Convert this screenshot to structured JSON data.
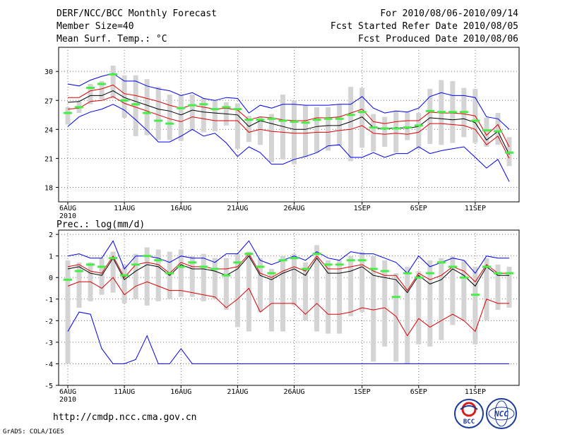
{
  "header": {
    "title": "DERF/NCC/BCC Monthly Forecast",
    "member_size": "Member Size=40",
    "variable": "Mean Surf. Temp.: °C",
    "forecast_period": "For 2010/08/06-2010/09/14",
    "started_refer": "Fcst Started Refer Date 2010/08/05",
    "produced": "Fcst Produced Date 2010/08/06"
  },
  "x_axis": {
    "n_days": 40,
    "tick_labels": [
      {
        "day": 1,
        "label": "6AUG"
      },
      {
        "day": 6,
        "label": "11AUG"
      },
      {
        "day": 11,
        "label": "16AUG"
      },
      {
        "day": 16,
        "label": "21AUG"
      },
      {
        "day": 21,
        "label": "26AUG"
      },
      {
        "day": 27,
        "label": "1SEP"
      },
      {
        "day": 32,
        "label": "6SEP"
      },
      {
        "day": 37,
        "label": "11SEP"
      }
    ],
    "year_label": "2010"
  },
  "chart_data": [
    {
      "type": "line",
      "name": "temperature",
      "title": "Mean Surf. Temp.: °C",
      "ylim": [
        16.5,
        32.5
      ],
      "yticks": [
        18,
        21,
        24,
        27,
        30
      ],
      "grid": true,
      "colors": {
        "max": "#0000ee",
        "min": "#0000ee",
        "upper": "#dd0000",
        "lower": "#dd0000",
        "mean": "#000000",
        "obs": "#44ee44",
        "spread": "#d4d4d4"
      },
      "series": [
        {
          "name": "max",
          "values": [
            28.7,
            28.5,
            29.1,
            29.5,
            29.8,
            29.0,
            29.0,
            28.5,
            28.2,
            28.0,
            27.5,
            27.8,
            27.2,
            27.0,
            27.3,
            27.2,
            25.7,
            26.5,
            26.2,
            26.6,
            26.6,
            26.5,
            26.5,
            26.5,
            26.6,
            26.6,
            27.4,
            26.2,
            25.7,
            25.9,
            25.8,
            26.2,
            27.4,
            27.8,
            27.5,
            27.5,
            27.3,
            25.3,
            25.1,
            24.0
          ]
        },
        {
          "name": "upper",
          "values": [
            27.3,
            27.3,
            28.0,
            28.2,
            28.6,
            27.7,
            27.5,
            27.2,
            26.9,
            26.5,
            26.2,
            26.5,
            26.3,
            26.1,
            26.2,
            26.0,
            25.0,
            25.3,
            25.2,
            25.0,
            24.9,
            24.9,
            25.2,
            25.2,
            25.3,
            25.7,
            26.1,
            24.8,
            24.6,
            24.8,
            24.9,
            24.9,
            25.8,
            25.7,
            25.7,
            25.6,
            25.4,
            23.4,
            24.5,
            22.2
          ]
        },
        {
          "name": "mean",
          "values": [
            26.8,
            26.9,
            27.5,
            27.5,
            28.0,
            27.3,
            26.9,
            26.5,
            26.1,
            25.9,
            25.5,
            26.0,
            25.8,
            25.7,
            25.6,
            25.5,
            24.3,
            24.9,
            24.6,
            24.3,
            24.0,
            24.0,
            24.3,
            24.4,
            24.4,
            24.8,
            25.3,
            24.2,
            24.0,
            24.2,
            24.1,
            24.3,
            25.2,
            25.1,
            25.0,
            25.1,
            24.7,
            22.9,
            23.8,
            21.4
          ]
        },
        {
          "name": "lower",
          "values": [
            26.1,
            26.2,
            26.9,
            27.0,
            27.4,
            26.7,
            26.3,
            25.9,
            25.5,
            25.1,
            24.8,
            25.3,
            25.1,
            24.9,
            24.9,
            24.9,
            23.7,
            24.0,
            23.8,
            23.7,
            23.6,
            23.6,
            23.7,
            23.7,
            23.9,
            24.0,
            24.4,
            23.6,
            23.5,
            23.6,
            23.5,
            23.7,
            24.6,
            24.6,
            24.5,
            24.4,
            24.0,
            22.4,
            23.3,
            21.0
          ]
        },
        {
          "name": "min",
          "values": [
            24.3,
            25.3,
            25.8,
            26.1,
            26.6,
            26.0,
            25.0,
            23.9,
            22.7,
            22.7,
            23.3,
            24.0,
            23.3,
            23.6,
            22.6,
            21.2,
            22.2,
            21.6,
            20.4,
            20.4,
            20.9,
            21.2,
            21.6,
            22.3,
            22.4,
            21.1,
            21.1,
            21.6,
            21.1,
            21.5,
            21.5,
            22.2,
            21.5,
            21.8,
            22.0,
            22.2,
            21.1,
            20.0,
            20.9,
            18.6
          ]
        },
        {
          "name": "obs",
          "values": [
            25.7,
            26.3,
            28.3,
            28.7,
            29.7,
            27.0,
            26.6,
            25.7,
            24.9,
            24.6,
            26.2,
            26.5,
            26.6,
            26.1,
            26.3,
            26.1,
            25.0,
            25.0,
            25.1,
            24.9,
            24.8,
            24.7,
            25.0,
            25.1,
            25.1,
            25.5,
            25.8,
            24.2,
            24.1,
            24.1,
            24.2,
            24.4,
            25.9,
            25.8,
            25.8,
            25.8,
            24.9,
            23.9,
            23.8,
            21.6
          ]
        },
        {
          "name": "spread_top",
          "values": [
            26.3,
            26.9,
            28.7,
            29.0,
            30.6,
            29.6,
            29.6,
            29.2,
            28.4,
            27.6,
            27.6,
            27.6,
            27.2,
            27.0,
            26.8,
            26.7,
            25.4,
            25.3,
            25.6,
            27.6,
            27.0,
            26.5,
            26.3,
            26.3,
            26.6,
            28.4,
            28.3,
            25.6,
            25.3,
            25.9,
            25.8,
            25.7,
            28.2,
            29.1,
            29.0,
            28.3,
            28.2,
            25.2,
            25.7,
            23.2
          ]
        },
        {
          "name": "spread_bottom",
          "values": [
            24.5,
            25.7,
            26.6,
            27.1,
            27.2,
            25.2,
            23.3,
            23.4,
            22.9,
            22.9,
            22.8,
            23.9,
            23.7,
            23.8,
            24.4,
            22.0,
            22.7,
            22.4,
            20.6,
            20.9,
            20.4,
            21.1,
            21.6,
            21.8,
            22.3,
            20.7,
            22.1,
            21.7,
            22.2,
            21.6,
            22.9,
            22.0,
            22.5,
            22.4,
            22.6,
            23.2,
            22.6,
            22.2,
            22.4,
            20.2
          ]
        }
      ]
    },
    {
      "type": "line",
      "name": "precipitation",
      "title": "Prec.: log(mm/d)",
      "ylim": [
        -5,
        2.2
      ],
      "yticks": [
        -5,
        -4,
        -3,
        -2,
        -1,
        0,
        1,
        2
      ],
      "grid": true,
      "colors": {
        "max": "#0000ee",
        "min": "#0000ee",
        "upper": "#dd0000",
        "lower": "#dd0000",
        "mean": "#000000",
        "obs": "#44ee44",
        "spread": "#d4d4d4"
      },
      "series": [
        {
          "name": "max",
          "values": [
            1.0,
            1.1,
            0.9,
            0.9,
            1.7,
            0.4,
            1.0,
            1.0,
            0.9,
            0.7,
            1.0,
            0.9,
            0.9,
            0.7,
            1.1,
            1.1,
            1.7,
            0.8,
            0.6,
            0.8,
            1.0,
            0.8,
            1.2,
            0.9,
            0.8,
            1.2,
            1.1,
            1.1,
            0.9,
            0.7,
            0.2,
            1.0,
            0.5,
            0.7,
            0.9,
            0.8,
            0.2,
            1.0,
            0.9,
            0.9
          ]
        },
        {
          "name": "upper",
          "values": [
            0.5,
            0.6,
            0.3,
            0.2,
            1.0,
            0.0,
            0.6,
            0.7,
            0.6,
            0.2,
            0.7,
            0.5,
            0.5,
            0.4,
            0.4,
            0.5,
            1.1,
            0.2,
            0.0,
            0.3,
            0.5,
            0.3,
            1.0,
            0.4,
            0.4,
            0.5,
            0.6,
            0.3,
            0.1,
            0.1,
            -0.6,
            0.2,
            -0.1,
            0.1,
            0.5,
            0.3,
            -0.2,
            0.6,
            0.2,
            0.2
          ]
        },
        {
          "name": "mean",
          "values": [
            0.4,
            0.5,
            0.2,
            0.1,
            0.9,
            -0.1,
            0.3,
            0.6,
            0.5,
            0.1,
            0.6,
            0.4,
            0.4,
            0.3,
            0.1,
            0.4,
            1.0,
            0.1,
            -0.1,
            0.2,
            0.4,
            0.1,
            0.9,
            0.2,
            0.2,
            0.3,
            0.5,
            0.1,
            0.0,
            -0.1,
            -0.7,
            0.1,
            -0.3,
            -0.1,
            0.4,
            0.1,
            -0.4,
            0.5,
            0.1,
            0.1
          ]
        },
        {
          "name": "lower",
          "values": [
            -0.4,
            -0.2,
            -0.2,
            -0.5,
            0.0,
            -0.8,
            -0.4,
            -0.2,
            -0.4,
            -0.6,
            -0.6,
            -0.7,
            -0.8,
            -0.9,
            -1.4,
            -1.0,
            -0.5,
            -1.6,
            -1.2,
            -1.2,
            -1.2,
            -1.7,
            -1.2,
            -1.7,
            -1.7,
            -1.6,
            -1.4,
            -1.5,
            -1.4,
            -1.8,
            -2.7,
            -1.9,
            -2.3,
            -2.0,
            -1.7,
            -2.0,
            -2.5,
            -1.0,
            -1.2,
            -1.2
          ]
        },
        {
          "name": "min",
          "values": [
            -2.5,
            -1.6,
            -1.7,
            -3.3,
            -4.0,
            -4.0,
            -3.8,
            -2.7,
            -4.0,
            -4.0,
            -3.3,
            -4.0,
            -4.0,
            -4.0,
            -4.0,
            -4.0,
            -4.0,
            -4.0,
            -4.0,
            -4.0,
            -4.0,
            -4.0,
            -4.0,
            -4.0,
            -4.0,
            -4.0,
            -4.0,
            -4.0,
            -4.0,
            -4.0,
            -4.0,
            -4.0,
            -4.0,
            -4.0,
            -4.0,
            -4.0,
            -4.0,
            -4.0,
            -4.0,
            -4.0
          ]
        },
        {
          "name": "obs",
          "values": [
            -0.1,
            0.3,
            0.6,
            0.5,
            0.9,
            0.1,
            0.6,
            1.0,
            0.8,
            0.2,
            0.5,
            0.7,
            0.5,
            0.4,
            0.1,
            0.7,
            1.1,
            0.5,
            0.2,
            0.8,
            0.9,
            0.4,
            1.1,
            0.6,
            0.6,
            0.8,
            0.8,
            0.4,
            0.3,
            -0.9,
            0.2,
            0.0,
            0.2,
            0.7,
            0.5,
            0.0,
            -0.8,
            0.5,
            0.2,
            0.2
          ]
        },
        {
          "name": "spread_top",
          "values": [
            0.8,
            0.7,
            0.7,
            0.9,
            1.2,
            0.6,
            1.1,
            1.4,
            1.3,
            1.2,
            1.3,
            1.0,
            1.1,
            0.9,
            0.9,
            1.1,
            1.2,
            0.9,
            0.4,
            1.0,
            1.1,
            0.7,
            1.5,
            0.8,
            0.8,
            1.0,
            1.2,
            1.0,
            0.8,
            0.2,
            0.5,
            0.3,
            0.8,
            0.9,
            1.0,
            0.8,
            0.5,
            0.9,
            0.6,
            0.5
          ]
        },
        {
          "name": "spread_bottom",
          "values": [
            -4.0,
            -1.4,
            -1.1,
            -0.8,
            -0.7,
            -1.2,
            -1.0,
            -1.3,
            -1.1,
            -1.0,
            -0.9,
            -0.9,
            -1.1,
            -1.0,
            -1.5,
            -2.3,
            -2.5,
            -1.6,
            -2.5,
            -2.5,
            -1.3,
            -2.0,
            -2.5,
            -2.6,
            -2.6,
            -1.8,
            -1.6,
            -3.9,
            -3.2,
            -3.9,
            -4.0,
            -3.1,
            -3.2,
            -2.9,
            -2.2,
            -2.0,
            -3.1,
            -2.0,
            -1.5,
            -1.4
          ]
        }
      ]
    }
  ],
  "footer": {
    "url": "http://cmdp.ncc.cma.gov.cn",
    "grads_credit": "GrADS: COLA/IGES",
    "logo_bcc_text": "BCC",
    "logo_ncc_text": "NCC"
  }
}
